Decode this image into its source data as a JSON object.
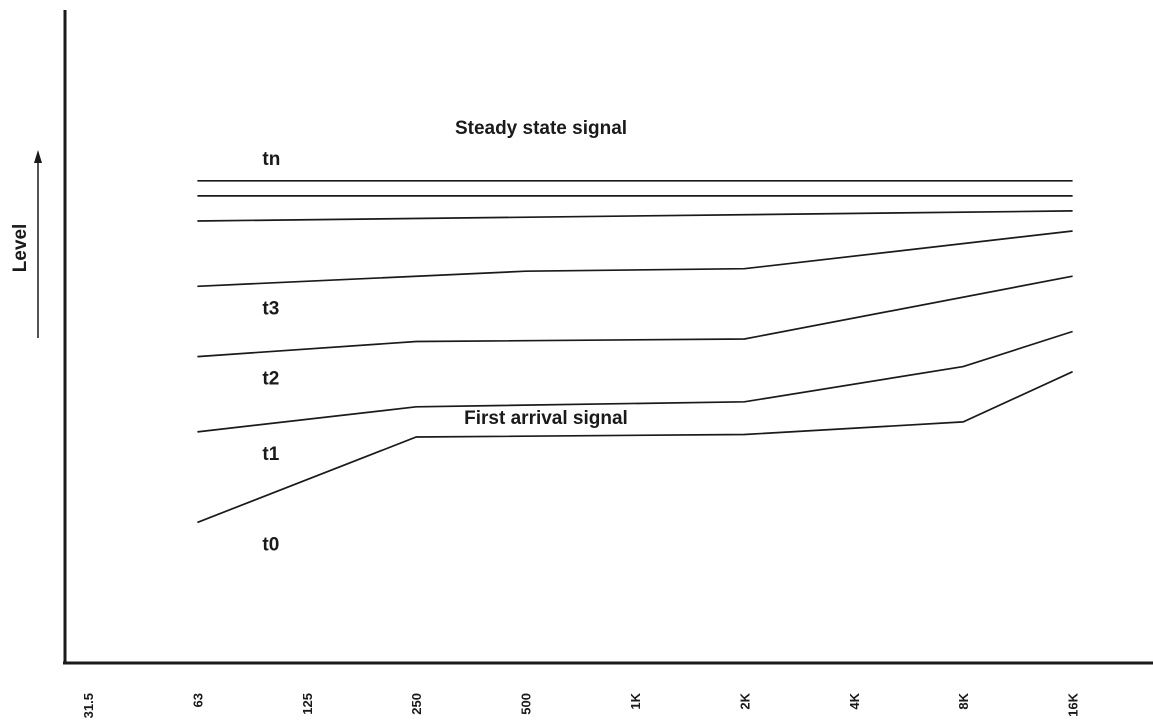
{
  "chart_data": {
    "type": "line",
    "title": "",
    "xlabel": "",
    "ylabel": "Level",
    "categories": [
      "31.5",
      "63",
      "125",
      "250",
      "500",
      "1K",
      "2K",
      "4K",
      "8K",
      "16K"
    ],
    "annotations": {
      "top": "Steady state signal",
      "bottom": "First arrival signal"
    },
    "grid": false,
    "legend": "none",
    "series": [
      {
        "name": "tn",
        "points": [
          [
            1.0,
            96.0
          ],
          [
            9.0,
            96.0
          ]
        ]
      },
      {
        "name": "",
        "points": [
          [
            1.0,
            93.0
          ],
          [
            9.0,
            93.0
          ]
        ]
      },
      {
        "name": "",
        "points": [
          [
            1.0,
            88.0
          ],
          [
            9.0,
            90.0
          ]
        ]
      },
      {
        "name": "t3",
        "points": [
          [
            1.0,
            75.0
          ],
          [
            4.0,
            78.0
          ],
          [
            6.0,
            78.5
          ],
          [
            9.0,
            86.0
          ]
        ]
      },
      {
        "name": "t2",
        "points": [
          [
            1.0,
            61.0
          ],
          [
            3.0,
            64.0
          ],
          [
            6.0,
            64.5
          ],
          [
            9.0,
            77.0
          ]
        ]
      },
      {
        "name": "t1",
        "points": [
          [
            1.0,
            46.0
          ],
          [
            3.0,
            51.0
          ],
          [
            6.0,
            52.0
          ],
          [
            8.0,
            59.0
          ],
          [
            9.0,
            66.0
          ]
        ]
      },
      {
        "name": "t0",
        "points": [
          [
            1.0,
            28.0
          ],
          [
            3.0,
            45.0
          ],
          [
            6.0,
            45.5
          ],
          [
            8.0,
            48.0
          ],
          [
            9.0,
            58.0
          ]
        ]
      }
    ],
    "ylim": [
      0,
      130
    ]
  }
}
